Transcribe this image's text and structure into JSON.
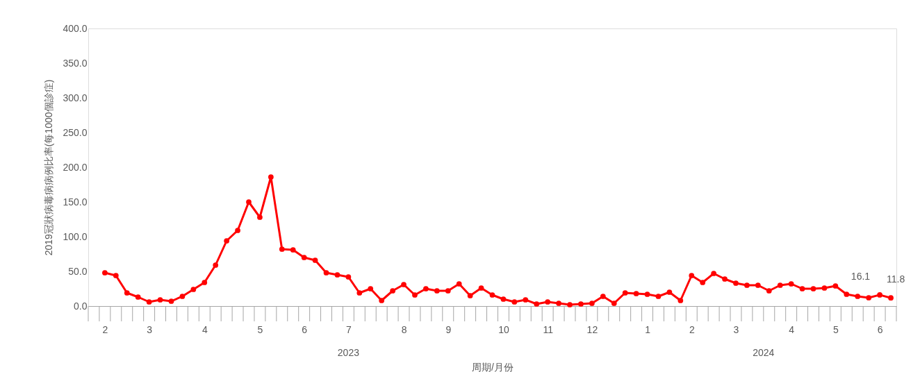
{
  "chart_data": {
    "type": "line",
    "ylabel": "2019冠狀病毒病病例比率(每1000個診症)",
    "xlabel": "周期/月份",
    "annotations": [
      "2023",
      "2024"
    ],
    "categories": [
      null,
      "2",
      null,
      null,
      null,
      "3",
      null,
      null,
      null,
      null,
      "4",
      null,
      null,
      null,
      null,
      "5",
      null,
      null,
      null,
      "6",
      null,
      null,
      null,
      "7",
      null,
      null,
      null,
      null,
      "8",
      null,
      null,
      null,
      "9",
      null,
      null,
      null,
      null,
      "10",
      null,
      null,
      null,
      "11",
      null,
      null,
      null,
      "12",
      null,
      null,
      null,
      null,
      "1",
      null,
      null,
      null,
      "2",
      null,
      null,
      null,
      "3",
      null,
      null,
      null,
      null,
      "4",
      null,
      null,
      null,
      "5",
      null,
      null,
      null,
      "6",
      null
    ],
    "series": [
      {
        "color": "#ff0000",
        "values": [
          null,
          48,
          44,
          19,
          13,
          6,
          9,
          7,
          14,
          24,
          34,
          59,
          94,
          109,
          150,
          128,
          186,
          82,
          81,
          70,
          66,
          48,
          45,
          42,
          19,
          25,
          8,
          22,
          31,
          16,
          25,
          22,
          22,
          32,
          15,
          26,
          16,
          10,
          6,
          9,
          3,
          6,
          4,
          2,
          3,
          4,
          14,
          4,
          19,
          18,
          17,
          14,
          20,
          8,
          44,
          34,
          47,
          39,
          33,
          30,
          30,
          22,
          30,
          32,
          25,
          25,
          26,
          29,
          17,
          14,
          12,
          16.1,
          11.8
        ],
        "value_labels": [
          null,
          null,
          null,
          null,
          null,
          null,
          null,
          null,
          null,
          null,
          null,
          null,
          null,
          null,
          null,
          null,
          null,
          null,
          null,
          null,
          null,
          null,
          null,
          null,
          null,
          null,
          null,
          null,
          null,
          null,
          null,
          null,
          null,
          null,
          null,
          null,
          null,
          null,
          null,
          null,
          null,
          null,
          null,
          null,
          null,
          null,
          null,
          null,
          null,
          null,
          null,
          null,
          null,
          null,
          null,
          null,
          null,
          null,
          null,
          null,
          null,
          null,
          null,
          null,
          null,
          null,
          null,
          null,
          null,
          null,
          null,
          "16.1",
          "11.8"
        ]
      }
    ],
    "ylim": [
      0,
      400
    ],
    "yticks": [
      {
        "value": 0,
        "label": "0.0"
      },
      {
        "value": 50,
        "label": "50.0"
      },
      {
        "value": 100,
        "label": "100.0"
      },
      {
        "value": 150,
        "label": "150.0"
      },
      {
        "value": 200,
        "label": "200.0"
      },
      {
        "value": 250,
        "label": "250.0"
      },
      {
        "value": 300,
        "label": "300.0"
      },
      {
        "value": 350,
        "label": "350.0"
      },
      {
        "value": 400,
        "label": "400.0"
      }
    ],
    "grid": false,
    "marker": "circle",
    "line_style": "solid"
  }
}
